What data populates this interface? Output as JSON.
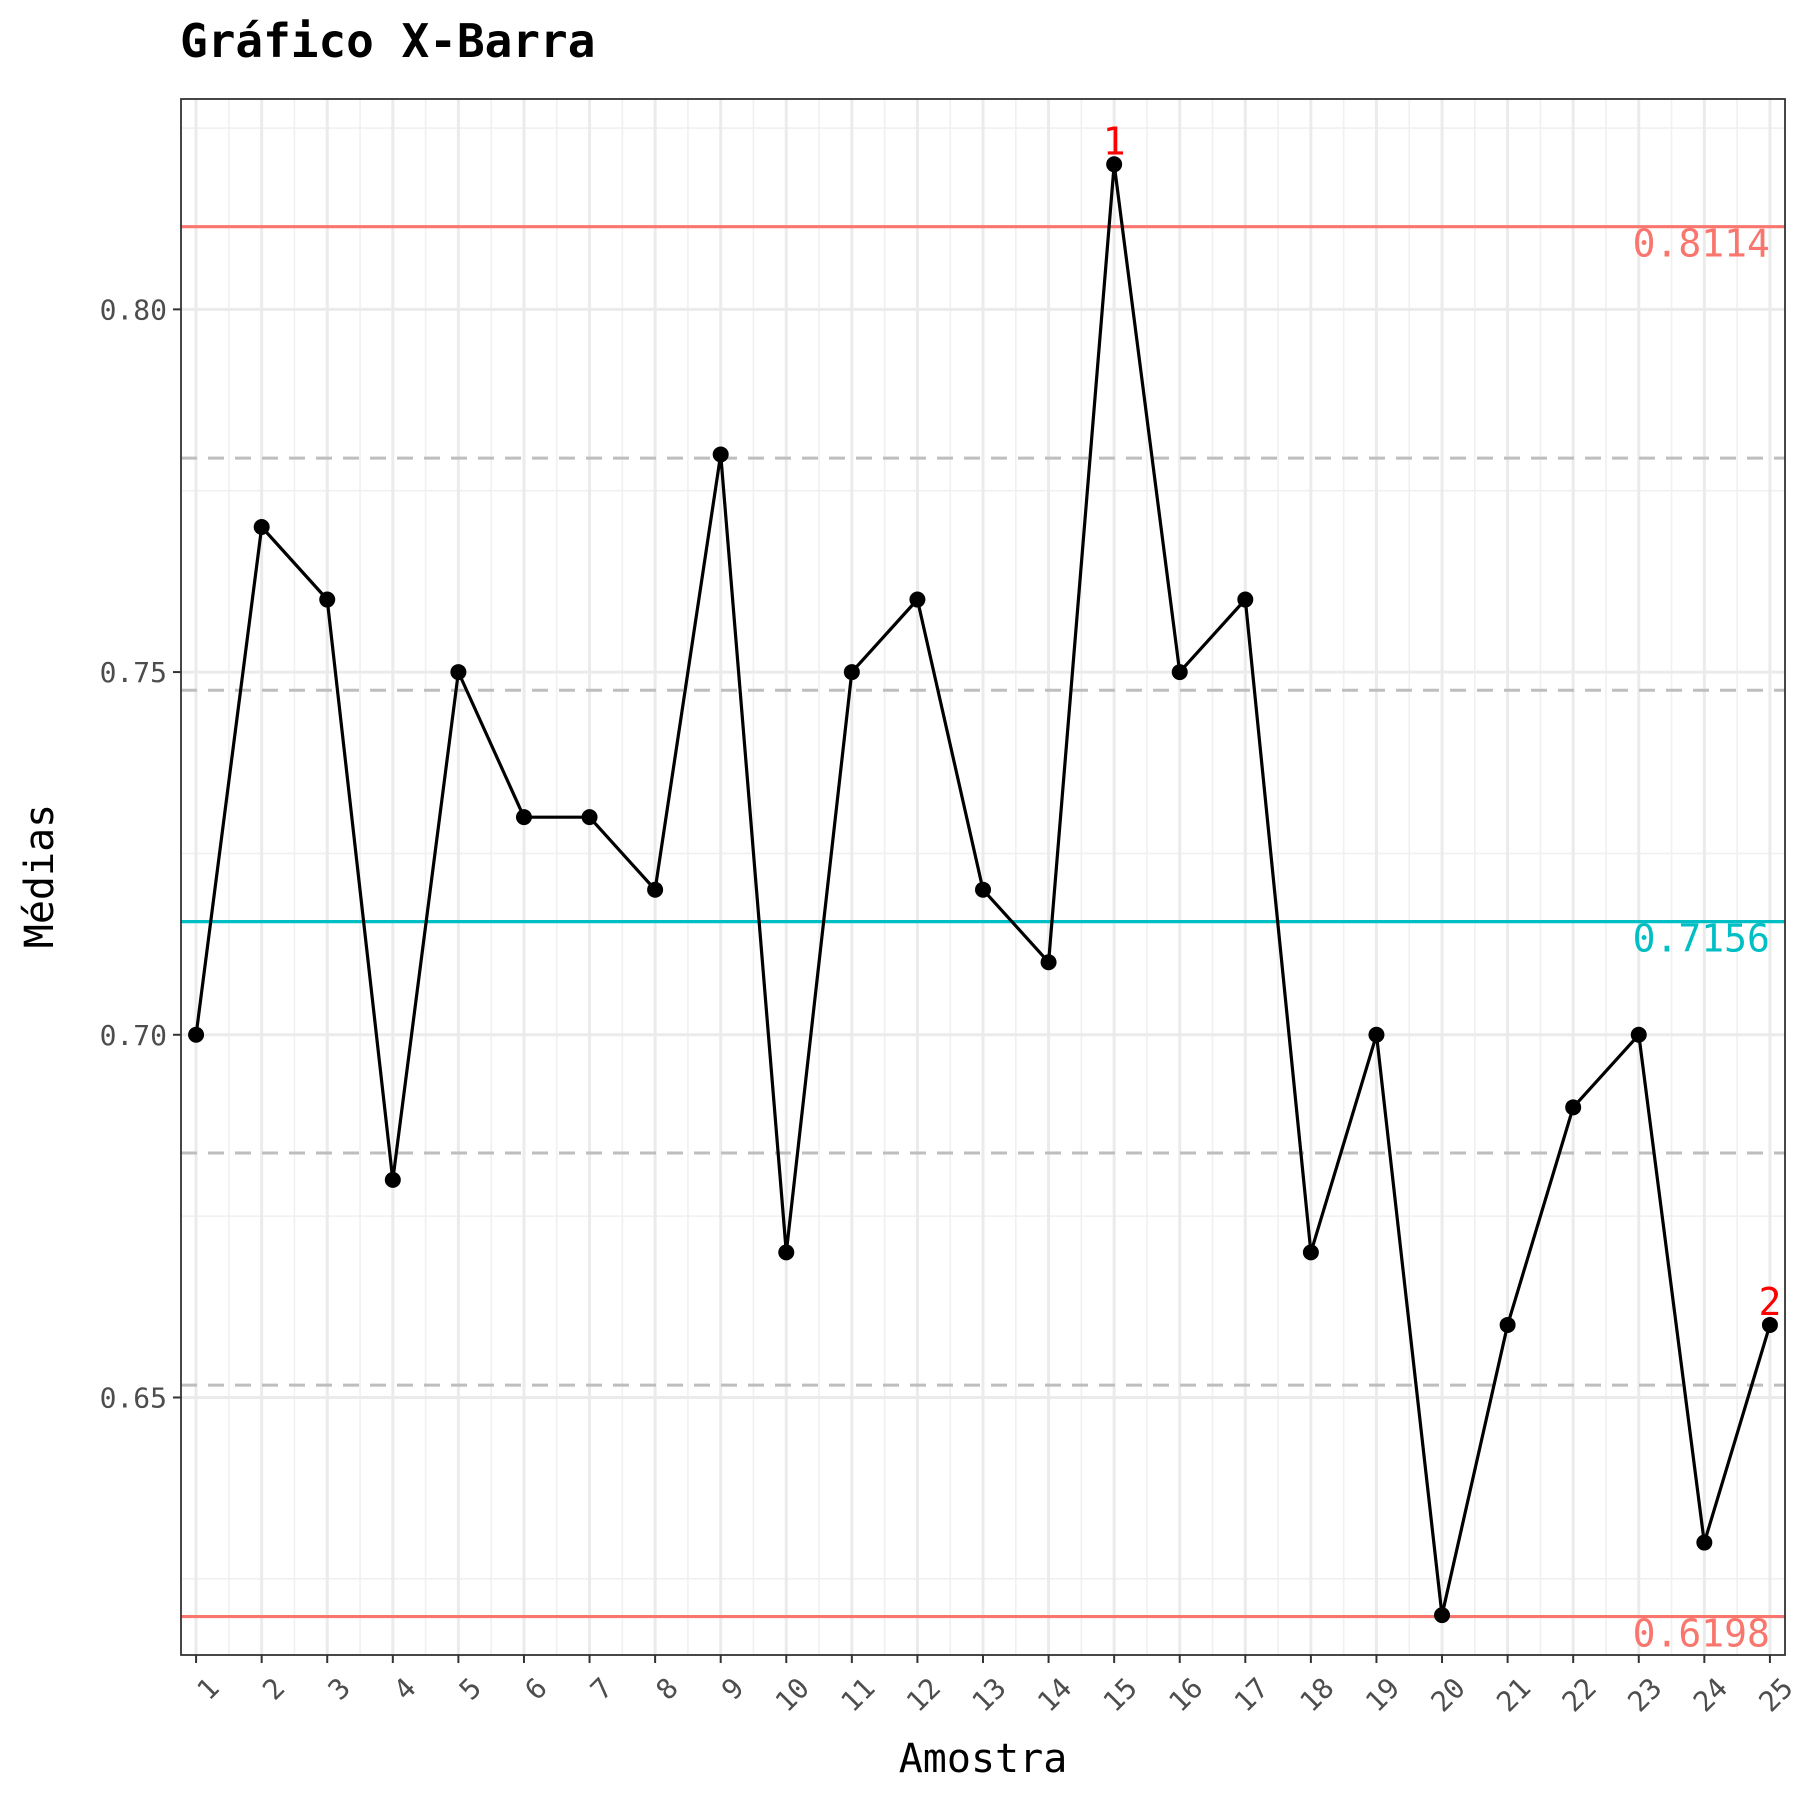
{
  "chart_data": {
    "type": "line",
    "title": "Gráfico X-Barra",
    "xlabel": "Amostra",
    "ylabel": "Médias",
    "x": [
      1,
      2,
      3,
      4,
      5,
      6,
      7,
      8,
      9,
      10,
      11,
      12,
      13,
      14,
      15,
      16,
      17,
      18,
      19,
      20,
      21,
      22,
      23,
      24,
      25
    ],
    "x_tick_labels": [
      "1",
      "2",
      "3",
      "4",
      "5",
      "6",
      "7",
      "8",
      "9",
      "10",
      "11",
      "12",
      "13",
      "14",
      "15",
      "16",
      "17",
      "18",
      "19",
      "20",
      "21",
      "22",
      "23",
      "24",
      "25"
    ],
    "series": [
      {
        "values": [
          0.7,
          0.77,
          0.76,
          0.68,
          0.75,
          0.73,
          0.73,
          0.72,
          0.78,
          0.67,
          0.75,
          0.76,
          0.72,
          0.71,
          0.82,
          0.75,
          0.76,
          0.67,
          0.7,
          0.62,
          0.66,
          0.69,
          0.7,
          0.63,
          0.66
        ],
        "color": "#000000"
      }
    ],
    "y_ticks": [
      0.65,
      0.7,
      0.75,
      0.8
    ],
    "y_tick_labels": [
      "0.65",
      "0.70",
      "0.75",
      "0.80"
    ],
    "ylim": [
      0.6145,
      0.829
    ],
    "xlim": [
      0.77,
      25.23
    ],
    "control_limits": [
      {
        "value": 0.8114,
        "label": "0.8114",
        "color": "#f8766d"
      },
      {
        "value": 0.7156,
        "label": "0.7156",
        "color": "#00bfc4"
      },
      {
        "value": 0.6198,
        "label": "0.6198",
        "color": "#f8766d"
      }
    ],
    "sigma_lines": {
      "values": [
        0.7795,
        0.7475,
        0.6837,
        0.6517
      ],
      "style": "dashed",
      "color": "#bebebe"
    },
    "violations": [
      {
        "x": 15,
        "label": "1"
      },
      {
        "x": 25,
        "label": "2"
      }
    ],
    "grid": true,
    "legend": "none"
  }
}
